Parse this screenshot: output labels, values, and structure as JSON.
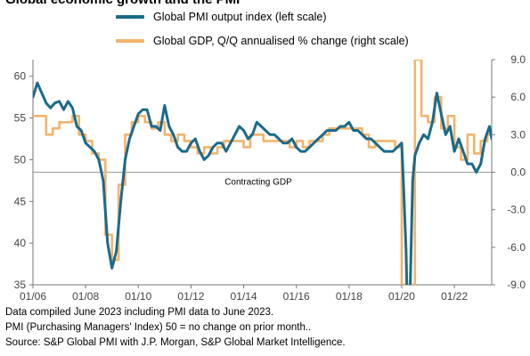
{
  "title": "Global economic growth and the PMI",
  "legend": [
    {
      "label": "Global PMI output index (left scale)",
      "color": "#1b6a8a"
    },
    {
      "label": "Global GDP, Q/Q annualised % change (right scale)",
      "color": "#f4b36b"
    }
  ],
  "footnotes": [
    "Data compiled June 2023 including PMI data to June 2023.",
    "PMI (Purchasing Managers' Index) 50 = no change on prior month..",
    "Source: S&P Global PMI with J.P. Morgan, S&P Global Market Intelligence."
  ],
  "chart_data": {
    "type": "line",
    "title": "Global economic growth and the PMI",
    "annotation": "Contracting GDP",
    "x_ticks": [
      "01/06",
      "01/08",
      "01/10",
      "01/12",
      "01/14",
      "01/16",
      "01/18",
      "01/20",
      "01/22"
    ],
    "x_range": [
      "2006-01",
      "2023-06"
    ],
    "y_left": {
      "ticks": [
        35,
        40,
        45,
        50,
        55,
        60
      ],
      "range": [
        35,
        62
      ]
    },
    "y_right": {
      "ticks": [
        "-9.0",
        "-6.0",
        "-3.0",
        "0.0",
        "3.0",
        "6.0",
        "9.0"
      ],
      "range": [
        -9,
        9
      ]
    },
    "grid": false,
    "legend_position": "top",
    "series": [
      {
        "name": "Global PMI output index (left scale)",
        "axis": "left",
        "color": "#1b6a8a",
        "points": [
          [
            "2006-01",
            57.5
          ],
          [
            "2006-03",
            59.2
          ],
          [
            "2006-05",
            58.0
          ],
          [
            "2006-07",
            56.8
          ],
          [
            "2006-09",
            56.2
          ],
          [
            "2006-11",
            56.8
          ],
          [
            "2007-01",
            57.0
          ],
          [
            "2007-03",
            56.0
          ],
          [
            "2007-05",
            57.0
          ],
          [
            "2007-07",
            56.2
          ],
          [
            "2007-09",
            54.0
          ],
          [
            "2007-11",
            53.5
          ],
          [
            "2008-01",
            52.0
          ],
          [
            "2008-03",
            51.5
          ],
          [
            "2008-05",
            51.0
          ],
          [
            "2008-07",
            50.0
          ],
          [
            "2008-09",
            47.5
          ],
          [
            "2008-11",
            40.0
          ],
          [
            "2009-01",
            37.0
          ],
          [
            "2009-03",
            39.0
          ],
          [
            "2009-05",
            45.0
          ],
          [
            "2009-07",
            50.0
          ],
          [
            "2009-09",
            52.5
          ],
          [
            "2009-11",
            54.0
          ],
          [
            "2010-01",
            55.5
          ],
          [
            "2010-03",
            56.0
          ],
          [
            "2010-05",
            56.0
          ],
          [
            "2010-07",
            54.0
          ],
          [
            "2010-09",
            54.0
          ],
          [
            "2010-11",
            53.5
          ],
          [
            "2011-01",
            56.5
          ],
          [
            "2011-03",
            54.0
          ],
          [
            "2011-05",
            53.0
          ],
          [
            "2011-07",
            51.5
          ],
          [
            "2011-09",
            51.0
          ],
          [
            "2011-11",
            51.0
          ],
          [
            "2012-01",
            52.0
          ],
          [
            "2012-03",
            52.5
          ],
          [
            "2012-05",
            51.0
          ],
          [
            "2012-07",
            50.0
          ],
          [
            "2012-09",
            50.5
          ],
          [
            "2012-11",
            51.5
          ],
          [
            "2013-01",
            52.0
          ],
          [
            "2013-03",
            52.0
          ],
          [
            "2013-05",
            51.0
          ],
          [
            "2013-07",
            52.0
          ],
          [
            "2013-09",
            53.0
          ],
          [
            "2013-11",
            54.0
          ],
          [
            "2014-01",
            53.5
          ],
          [
            "2014-03",
            52.5
          ],
          [
            "2014-05",
            53.0
          ],
          [
            "2014-07",
            54.5
          ],
          [
            "2014-09",
            54.0
          ],
          [
            "2014-11",
            53.5
          ],
          [
            "2015-01",
            53.0
          ],
          [
            "2015-03",
            53.0
          ],
          [
            "2015-05",
            52.5
          ],
          [
            "2015-07",
            52.0
          ],
          [
            "2015-09",
            52.0
          ],
          [
            "2015-11",
            52.5
          ],
          [
            "2016-01",
            51.5
          ],
          [
            "2016-03",
            51.0
          ],
          [
            "2016-05",
            51.0
          ],
          [
            "2016-07",
            51.5
          ],
          [
            "2016-09",
            52.0
          ],
          [
            "2016-11",
            52.5
          ],
          [
            "2017-01",
            53.0
          ],
          [
            "2017-03",
            53.5
          ],
          [
            "2017-05",
            53.5
          ],
          [
            "2017-07",
            53.5
          ],
          [
            "2017-09",
            54.0
          ],
          [
            "2017-11",
            54.0
          ],
          [
            "2018-01",
            54.5
          ],
          [
            "2018-03",
            53.5
          ],
          [
            "2018-05",
            53.5
          ],
          [
            "2018-07",
            53.0
          ],
          [
            "2018-09",
            52.5
          ],
          [
            "2018-11",
            52.5
          ],
          [
            "2019-01",
            52.0
          ],
          [
            "2019-03",
            51.5
          ],
          [
            "2019-05",
            51.0
          ],
          [
            "2019-07",
            51.0
          ],
          [
            "2019-09",
            51.0
          ],
          [
            "2019-11",
            51.5
          ],
          [
            "2020-01",
            52.0
          ],
          [
            "2020-02",
            46.0
          ],
          [
            "2020-03",
            39.0
          ],
          [
            "2020-04",
            26.0
          ],
          [
            "2020-05",
            36.0
          ],
          [
            "2020-06",
            47.5
          ],
          [
            "2020-07",
            50.5
          ],
          [
            "2020-09",
            52.0
          ],
          [
            "2020-11",
            53.0
          ],
          [
            "2021-01",
            52.5
          ],
          [
            "2021-03",
            54.5
          ],
          [
            "2021-05",
            58.0
          ],
          [
            "2021-07",
            55.5
          ],
          [
            "2021-09",
            53.0
          ],
          [
            "2021-11",
            54.0
          ],
          [
            "2022-01",
            51.0
          ],
          [
            "2022-03",
            52.5
          ],
          [
            "2022-05",
            51.0
          ],
          [
            "2022-07",
            49.5
          ],
          [
            "2022-09",
            49.5
          ],
          [
            "2022-11",
            48.5
          ],
          [
            "2023-01",
            49.5
          ],
          [
            "2023-03",
            52.5
          ],
          [
            "2023-05",
            54.0
          ],
          [
            "2023-06",
            52.5
          ]
        ]
      },
      {
        "name": "Global GDP, Q/Q annualised % change (right scale)",
        "axis": "right",
        "color": "#f4b36b",
        "step": true,
        "points": [
          [
            "2006-01",
            4.5
          ],
          [
            "2006-04",
            4.5
          ],
          [
            "2006-07",
            3.0
          ],
          [
            "2006-10",
            3.5
          ],
          [
            "2007-01",
            4.0
          ],
          [
            "2007-04",
            4.0
          ],
          [
            "2007-07",
            4.5
          ],
          [
            "2007-10",
            3.0
          ],
          [
            "2008-01",
            2.5
          ],
          [
            "2008-04",
            1.5
          ],
          [
            "2008-07",
            1.0
          ],
          [
            "2008-10",
            -5.0
          ],
          [
            "2009-01",
            -7.0
          ],
          [
            "2009-04",
            -1.0
          ],
          [
            "2009-07",
            3.0
          ],
          [
            "2009-10",
            4.0
          ],
          [
            "2010-01",
            4.5
          ],
          [
            "2010-04",
            4.0
          ],
          [
            "2010-07",
            3.5
          ],
          [
            "2010-10",
            4.0
          ],
          [
            "2011-01",
            3.0
          ],
          [
            "2011-04",
            2.5
          ],
          [
            "2011-07",
            3.0
          ],
          [
            "2011-10",
            2.5
          ],
          [
            "2012-01",
            2.0
          ],
          [
            "2012-04",
            1.5
          ],
          [
            "2012-07",
            2.0
          ],
          [
            "2012-10",
            1.5
          ],
          [
            "2013-01",
            2.0
          ],
          [
            "2013-04",
            2.5
          ],
          [
            "2013-07",
            2.5
          ],
          [
            "2013-10",
            2.5
          ],
          [
            "2014-01",
            2.0
          ],
          [
            "2014-04",
            3.0
          ],
          [
            "2014-07",
            3.0
          ],
          [
            "2014-10",
            2.5
          ],
          [
            "2015-01",
            2.5
          ],
          [
            "2015-04",
            2.5
          ],
          [
            "2015-07",
            2.5
          ],
          [
            "2015-10",
            2.0
          ],
          [
            "2016-01",
            2.5
          ],
          [
            "2016-04",
            2.0
          ],
          [
            "2016-07",
            2.5
          ],
          [
            "2016-10",
            2.5
          ],
          [
            "2017-01",
            3.0
          ],
          [
            "2017-04",
            3.5
          ],
          [
            "2017-07",
            3.5
          ],
          [
            "2017-10",
            3.5
          ],
          [
            "2018-01",
            3.5
          ],
          [
            "2018-04",
            3.5
          ],
          [
            "2018-07",
            3.0
          ],
          [
            "2018-10",
            2.0
          ],
          [
            "2019-01",
            2.5
          ],
          [
            "2019-04",
            2.5
          ],
          [
            "2019-07",
            2.5
          ],
          [
            "2019-10",
            2.0
          ],
          [
            "2020-01",
            -9.0
          ],
          [
            "2020-04",
            -9.0
          ],
          [
            "2020-07",
            9.0
          ],
          [
            "2020-10",
            4.5
          ],
          [
            "2021-01",
            4.0
          ],
          [
            "2021-04",
            6.0
          ],
          [
            "2021-07",
            3.5
          ],
          [
            "2021-10",
            4.5
          ],
          [
            "2022-01",
            2.0
          ],
          [
            "2022-04",
            1.0
          ],
          [
            "2022-07",
            3.0
          ],
          [
            "2022-10",
            1.5
          ],
          [
            "2023-01",
            2.5
          ],
          [
            "2023-04",
            3.0
          ],
          [
            "2023-06",
            3.0
          ]
        ]
      }
    ]
  }
}
